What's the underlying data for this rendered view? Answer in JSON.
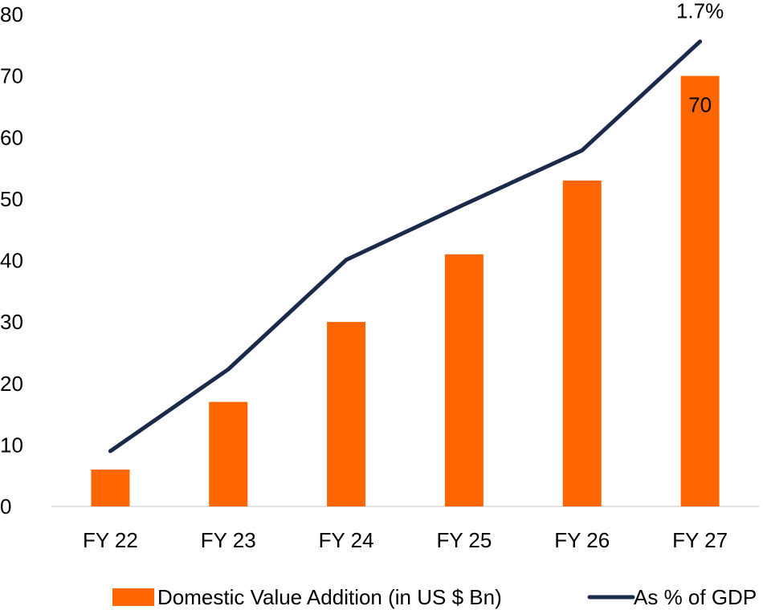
{
  "chart_data": {
    "type": "bar",
    "categories": [
      "FY 22",
      "FY 23",
      "FY 24",
      "FY 25",
      "FY 26",
      "FY 27"
    ],
    "series": [
      {
        "name": "Domestic Value Addition (in US $ Bn)",
        "type": "bar",
        "values": [
          6,
          17,
          30,
          41,
          53,
          70
        ],
        "color": "#FF6600"
      },
      {
        "name": "As % of GDP",
        "type": "line",
        "values": [
          9,
          22.3,
          40.1,
          49.1,
          57.9,
          75.6
        ],
        "color": "#1B2A4A"
      }
    ],
    "ylim": [
      0,
      80
    ],
    "yticks": [
      "0",
      "10",
      "20",
      "30",
      "40",
      "50",
      "60",
      "70",
      "80"
    ],
    "data_labels": [
      {
        "series": "Domestic Value Addition (in US $ Bn)",
        "category": "FY 27",
        "text": "70"
      },
      {
        "series": "As % of GDP",
        "category": "FY 27",
        "text": "1.7%"
      }
    ],
    "grid": false,
    "legend_position": "bottom-center"
  }
}
